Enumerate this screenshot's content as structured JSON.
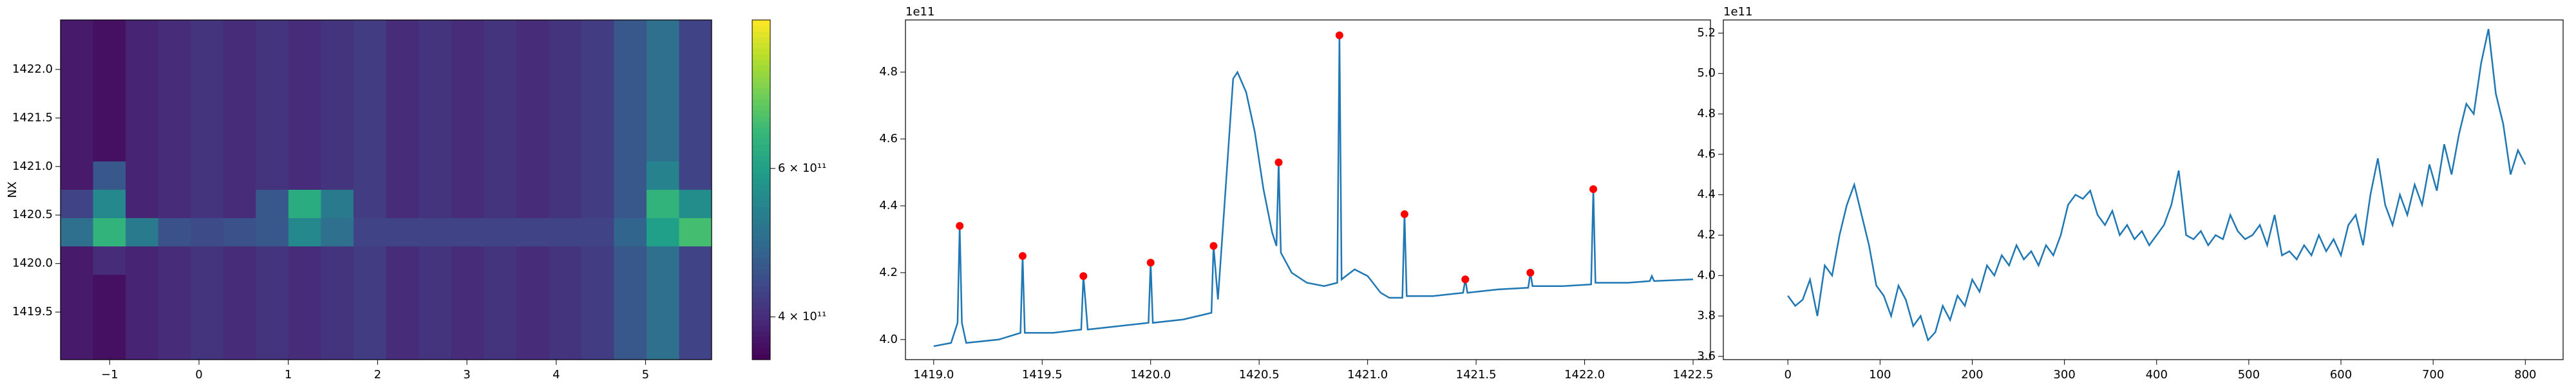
{
  "chart_data": [
    {
      "type": "heatmap",
      "ylabel": "NX",
      "colormap": "viridis",
      "cscale": "log",
      "xlim": [
        -1.55,
        5.74
      ],
      "ylim": [
        1419.01,
        1422.51
      ],
      "xticks": [
        {
          "value": -1,
          "label": "−1"
        },
        0,
        1,
        2,
        3,
        4,
        5
      ],
      "yticks": [
        1419.5,
        {
          "value": 1420,
          "label": "1420.0"
        },
        1420.5,
        {
          "value": 1421,
          "label": "1421.0"
        },
        1421.5,
        {
          "value": 1422,
          "label": "1422.0"
        }
      ],
      "clim": [
        356000000000.0,
        900000000000.0
      ],
      "cticks": [
        {
          "value": 400000000000.0,
          "label": "4 × 10¹¹"
        },
        {
          "value": 600000000000.0,
          "label": "6 × 10¹¹"
        }
      ],
      "z": [
        [
          380000000000.0,
          370000000000.0,
          390000000000.0,
          400000000000.0,
          410000000000.0,
          400000000000.0,
          410000000000.0,
          400000000000.0,
          410000000000.0,
          420000000000.0,
          400000000000.0,
          410000000000.0,
          400000000000.0,
          410000000000.0,
          400000000000.0,
          410000000000.0,
          420000000000.0,
          460000000000.0,
          500000000000.0,
          430000000000.0
        ],
        [
          380000000000.0,
          370000000000.0,
          390000000000.0,
          400000000000.0,
          410000000000.0,
          400000000000.0,
          410000000000.0,
          400000000000.0,
          410000000000.0,
          420000000000.0,
          400000000000.0,
          410000000000.0,
          400000000000.0,
          410000000000.0,
          400000000000.0,
          410000000000.0,
          420000000000.0,
          460000000000.0,
          500000000000.0,
          430000000000.0
        ],
        [
          380000000000.0,
          370000000000.0,
          390000000000.0,
          400000000000.0,
          410000000000.0,
          400000000000.0,
          410000000000.0,
          400000000000.0,
          410000000000.0,
          420000000000.0,
          400000000000.0,
          410000000000.0,
          400000000000.0,
          410000000000.0,
          400000000000.0,
          410000000000.0,
          420000000000.0,
          460000000000.0,
          500000000000.0,
          430000000000.0
        ],
        [
          380000000000.0,
          370000000000.0,
          390000000000.0,
          400000000000.0,
          410000000000.0,
          400000000000.0,
          410000000000.0,
          400000000000.0,
          410000000000.0,
          420000000000.0,
          400000000000.0,
          410000000000.0,
          400000000000.0,
          410000000000.0,
          400000000000.0,
          410000000000.0,
          420000000000.0,
          460000000000.0,
          500000000000.0,
          430000000000.0
        ],
        [
          380000000000.0,
          370000000000.0,
          390000000000.0,
          400000000000.0,
          410000000000.0,
          400000000000.0,
          410000000000.0,
          400000000000.0,
          410000000000.0,
          420000000000.0,
          400000000000.0,
          410000000000.0,
          400000000000.0,
          410000000000.0,
          400000000000.0,
          410000000000.0,
          420000000000.0,
          460000000000.0,
          500000000000.0,
          430000000000.0
        ],
        [
          380000000000.0,
          460000000000.0,
          390000000000.0,
          400000000000.0,
          410000000000.0,
          400000000000.0,
          410000000000.0,
          400000000000.0,
          410000000000.0,
          420000000000.0,
          400000000000.0,
          410000000000.0,
          400000000000.0,
          410000000000.0,
          400000000000.0,
          410000000000.0,
          420000000000.0,
          460000000000.0,
          540000000000.0,
          430000000000.0
        ],
        [
          430000000000.0,
          550000000000.0,
          390000000000.0,
          400000000000.0,
          410000000000.0,
          400000000000.0,
          460000000000.0,
          630000000000.0,
          520000000000.0,
          420000000000.0,
          400000000000.0,
          410000000000.0,
          400000000000.0,
          410000000000.0,
          400000000000.0,
          410000000000.0,
          420000000000.0,
          460000000000.0,
          650000000000.0,
          560000000000.0
        ],
        [
          500000000000.0,
          650000000000.0,
          520000000000.0,
          450000000000.0,
          440000000000.0,
          450000000000.0,
          460000000000.0,
          550000000000.0,
          500000000000.0,
          430000000000.0,
          430000000000.0,
          430000000000.0,
          430000000000.0,
          430000000000.0,
          430000000000.0,
          430000000000.0,
          430000000000.0,
          480000000000.0,
          600000000000.0,
          680000000000.0
        ],
        [
          380000000000.0,
          400000000000.0,
          390000000000.0,
          400000000000.0,
          410000000000.0,
          400000000000.0,
          410000000000.0,
          400000000000.0,
          410000000000.0,
          420000000000.0,
          400000000000.0,
          410000000000.0,
          400000000000.0,
          410000000000.0,
          400000000000.0,
          410000000000.0,
          420000000000.0,
          460000000000.0,
          500000000000.0,
          430000000000.0
        ],
        [
          380000000000.0,
          370000000000.0,
          390000000000.0,
          400000000000.0,
          410000000000.0,
          400000000000.0,
          410000000000.0,
          400000000000.0,
          410000000000.0,
          420000000000.0,
          400000000000.0,
          410000000000.0,
          400000000000.0,
          410000000000.0,
          400000000000.0,
          410000000000.0,
          420000000000.0,
          460000000000.0,
          500000000000.0,
          430000000000.0
        ],
        [
          380000000000.0,
          370000000000.0,
          390000000000.0,
          400000000000.0,
          410000000000.0,
          400000000000.0,
          410000000000.0,
          400000000000.0,
          410000000000.0,
          420000000000.0,
          400000000000.0,
          410000000000.0,
          400000000000.0,
          410000000000.0,
          400000000000.0,
          410000000000.0,
          420000000000.0,
          460000000000.0,
          500000000000.0,
          430000000000.0
        ],
        [
          380000000000.0,
          370000000000.0,
          390000000000.0,
          400000000000.0,
          410000000000.0,
          400000000000.0,
          410000000000.0,
          400000000000.0,
          410000000000.0,
          420000000000.0,
          400000000000.0,
          410000000000.0,
          400000000000.0,
          410000000000.0,
          400000000000.0,
          410000000000.0,
          420000000000.0,
          460000000000.0,
          500000000000.0,
          430000000000.0
        ]
      ]
    },
    {
      "type": "line",
      "offset_label": "1e11",
      "color": "#1f77b4",
      "xlim": [
        1418.87,
        1422.58
      ],
      "ylim": [
        3.94,
        4.956
      ],
      "xticks": [
        {
          "value": 1419,
          "label": "1419.0"
        },
        1419.5,
        {
          "value": 1420,
          "label": "1420.0"
        },
        1420.5,
        {
          "value": 1421,
          "label": "1421.0"
        },
        1421.5,
        {
          "value": 1422,
          "label": "1422.0"
        },
        1422.5
      ],
      "yticks": [
        {
          "value": 4,
          "label": "4.0"
        },
        4.2,
        4.4,
        4.6,
        4.8
      ],
      "x": [
        1419.0,
        1419.08,
        1419.11,
        1419.12,
        1419.13,
        1419.15,
        1419.3,
        1419.4,
        1419.41,
        1419.42,
        1419.55,
        1419.68,
        1419.69,
        1419.71,
        1419.85,
        1419.99,
        1420.0,
        1420.01,
        1420.15,
        1420.28,
        1420.29,
        1420.31,
        1420.34,
        1420.38,
        1420.4,
        1420.44,
        1420.48,
        1420.52,
        1420.56,
        1420.58,
        1420.59,
        1420.6,
        1420.65,
        1420.72,
        1420.8,
        1420.86,
        1420.87,
        1420.88,
        1420.94,
        1421.0,
        1421.06,
        1421.1,
        1421.16,
        1421.17,
        1421.18,
        1421.3,
        1421.44,
        1421.45,
        1421.46,
        1421.6,
        1421.74,
        1421.75,
        1421.76,
        1421.9,
        1422.03,
        1422.04,
        1422.05,
        1422.2,
        1422.3,
        1422.31,
        1422.32,
        1422.5
      ],
      "values": [
        3.98,
        3.99,
        4.05,
        4.34,
        4.05,
        3.99,
        4.0,
        4.02,
        4.25,
        4.02,
        4.02,
        4.03,
        4.19,
        4.03,
        4.04,
        4.05,
        4.23,
        4.05,
        4.06,
        4.08,
        4.28,
        4.12,
        4.4,
        4.78,
        4.8,
        4.74,
        4.62,
        4.45,
        4.32,
        4.28,
        4.53,
        4.26,
        4.2,
        4.17,
        4.16,
        4.17,
        4.91,
        4.18,
        4.21,
        4.19,
        4.14,
        4.125,
        4.125,
        4.375,
        4.13,
        4.13,
        4.14,
        4.18,
        4.14,
        4.15,
        4.155,
        4.2,
        4.16,
        4.16,
        4.165,
        4.45,
        4.17,
        4.17,
        4.175,
        4.19,
        4.175,
        4.18
      ],
      "peaks": {
        "color": "red",
        "x": [
          1419.12,
          1419.41,
          1419.69,
          1420.0,
          1420.29,
          1420.59,
          1420.87,
          1421.17,
          1421.45,
          1421.75,
          1422.04
        ],
        "values": [
          4.34,
          4.25,
          4.19,
          4.23,
          4.28,
          4.53,
          4.91,
          4.375,
          4.18,
          4.2,
          4.45
        ]
      }
    },
    {
      "type": "line",
      "offset_label": "1e11",
      "color": "#1f77b4",
      "xlim": [
        -70,
        841
      ],
      "ylim": [
        3.584,
        5.265
      ],
      "xticks": [
        0,
        100,
        200,
        300,
        400,
        500,
        600,
        700,
        800
      ],
      "yticks": [
        3.6,
        3.8,
        {
          "value": 4,
          "label": "4.0"
        },
        4.2,
        4.4,
        4.6,
        4.8,
        {
          "value": 5,
          "label": "5.0"
        },
        5.2
      ],
      "x": [
        0,
        8,
        16,
        24,
        32,
        40,
        48,
        56,
        64,
        72,
        80,
        88,
        96,
        104,
        112,
        120,
        128,
        136,
        144,
        152,
        160,
        168,
        176,
        184,
        192,
        200,
        208,
        216,
        224,
        232,
        240,
        248,
        256,
        264,
        272,
        280,
        288,
        296,
        304,
        312,
        320,
        328,
        336,
        344,
        352,
        360,
        368,
        376,
        384,
        392,
        400,
        408,
        416,
        424,
        432,
        440,
        448,
        456,
        464,
        472,
        480,
        488,
        496,
        504,
        512,
        520,
        528,
        536,
        544,
        552,
        560,
        568,
        576,
        584,
        592,
        600,
        608,
        616,
        624,
        632,
        640,
        648,
        656,
        664,
        672,
        680,
        688,
        696,
        704,
        712,
        720,
        728,
        736,
        744,
        752,
        760,
        768,
        776,
        784,
        792,
        800
      ],
      "values": [
        3.9,
        3.85,
        3.88,
        3.98,
        3.8,
        4.05,
        4.0,
        4.2,
        4.35,
        4.45,
        4.3,
        4.15,
        3.95,
        3.9,
        3.8,
        3.95,
        3.88,
        3.75,
        3.8,
        3.68,
        3.72,
        3.85,
        3.78,
        3.9,
        3.85,
        3.98,
        3.92,
        4.05,
        4.0,
        4.1,
        4.05,
        4.15,
        4.08,
        4.12,
        4.05,
        4.15,
        4.1,
        4.2,
        4.35,
        4.4,
        4.38,
        4.42,
        4.3,
        4.25,
        4.32,
        4.2,
        4.25,
        4.18,
        4.22,
        4.15,
        4.2,
        4.25,
        4.35,
        4.52,
        4.2,
        4.18,
        4.22,
        4.15,
        4.2,
        4.18,
        4.3,
        4.22,
        4.18,
        4.2,
        4.25,
        4.15,
        4.3,
        4.1,
        4.12,
        4.08,
        4.15,
        4.1,
        4.2,
        4.12,
        4.18,
        4.1,
        4.25,
        4.3,
        4.15,
        4.4,
        4.58,
        4.35,
        4.25,
        4.4,
        4.3,
        4.45,
        4.35,
        4.55,
        4.42,
        4.65,
        4.5,
        4.7,
        4.85,
        4.8,
        5.05,
        5.22,
        4.9,
        4.75,
        4.5,
        4.62,
        4.55
      ]
    }
  ]
}
